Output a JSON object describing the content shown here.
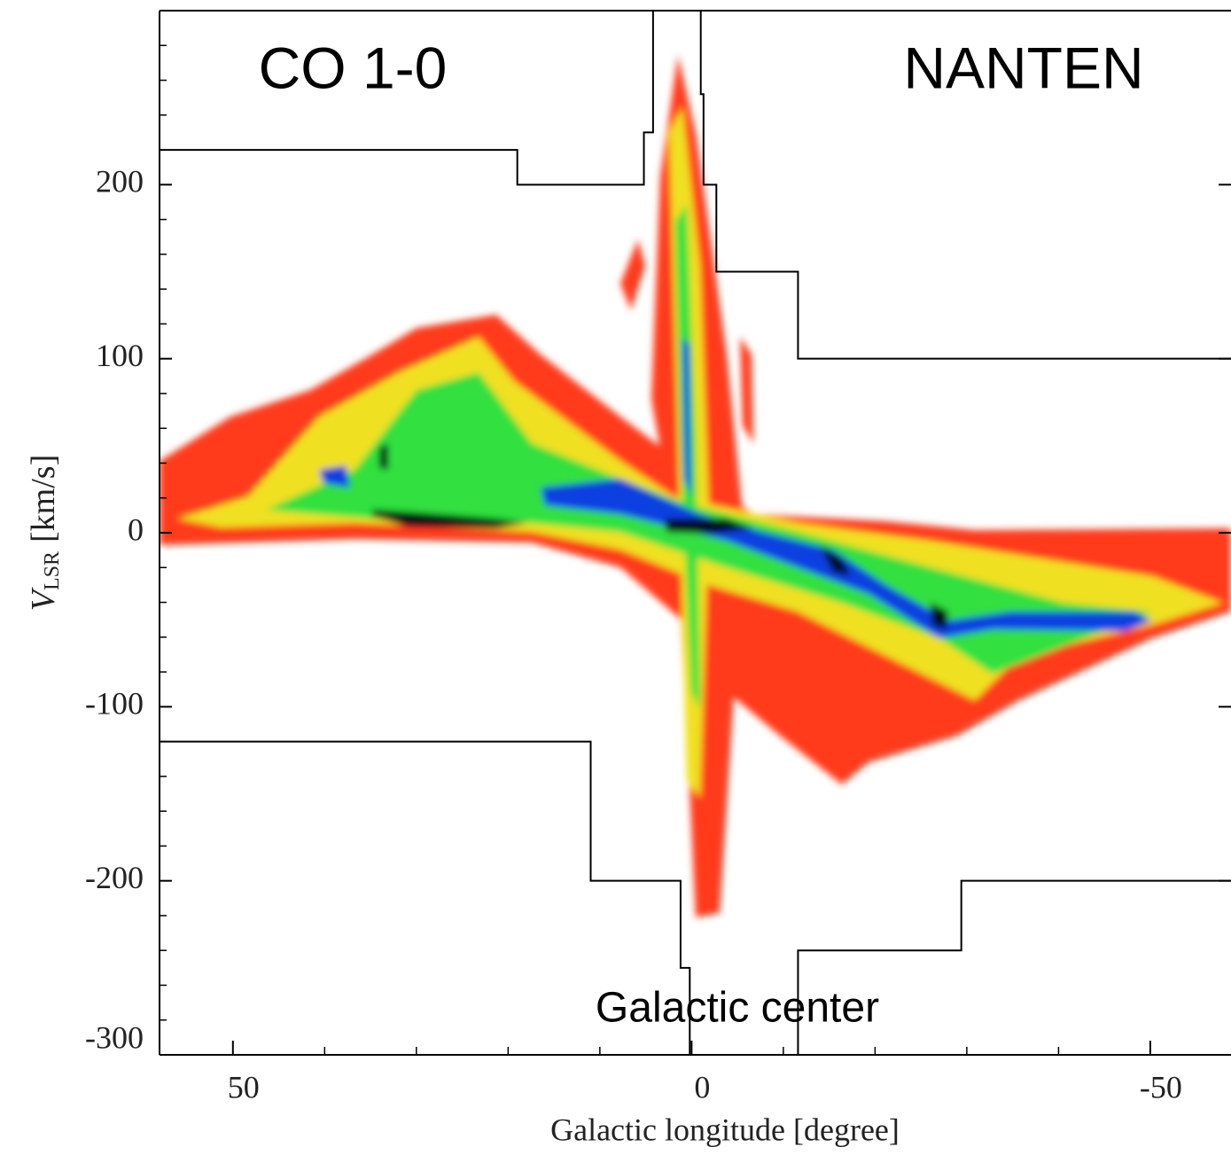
{
  "chart_data": {
    "type": "line",
    "annotations": [
      "CO 1-0",
      "NANTEN",
      "Galactic center"
    ],
    "xlabel": "Galactic longitude [degree]",
    "ylabel": {
      "main": "V",
      "sub": "LSR",
      "unit": "[km/s]"
    },
    "xlim": [
      58,
      -58.8
    ],
    "ylim": [
      -300,
      300
    ],
    "xticks": [
      50,
      0,
      -50
    ],
    "xminorticks": [
      40,
      30,
      20,
      10,
      -10,
      -20,
      -30,
      -40
    ],
    "yticks": [
      200,
      100,
      0,
      -100,
      -200,
      -300
    ],
    "yminorticks": [
      280,
      260,
      240,
      220,
      180,
      160,
      140,
      120,
      80,
      60,
      40,
      20,
      -20,
      -40,
      -60,
      -80,
      -120,
      -140,
      -160,
      -180,
      -220,
      -240,
      -260,
      -280
    ],
    "grid": false,
    "series": [
      {
        "color": "#000000",
        "x": [
          58,
          19,
          19,
          5.2,
          5.2,
          4.2,
          4.2,
          null,
          -1,
          -1,
          -1.3,
          -1.3,
          -2.7,
          -2.7,
          -11.6,
          -11.6,
          -58.8
        ],
        "values": [
          220,
          220,
          200,
          200,
          230,
          230,
          300,
          null,
          300,
          252,
          252,
          200,
          200,
          150,
          150,
          100,
          100
        ]
      },
      {
        "color": "#000000",
        "x": [
          58,
          11,
          11,
          1.2,
          1.2,
          0.2,
          0.2,
          null,
          -11.6,
          -11.6,
          -29.4,
          -29.4,
          -58.8
        ],
        "values": [
          -120,
          -120,
          -200,
          -200,
          -250,
          -250,
          -300,
          null,
          -300,
          -240,
          -240,
          -200,
          -200
        ]
      }
    ]
  }
}
